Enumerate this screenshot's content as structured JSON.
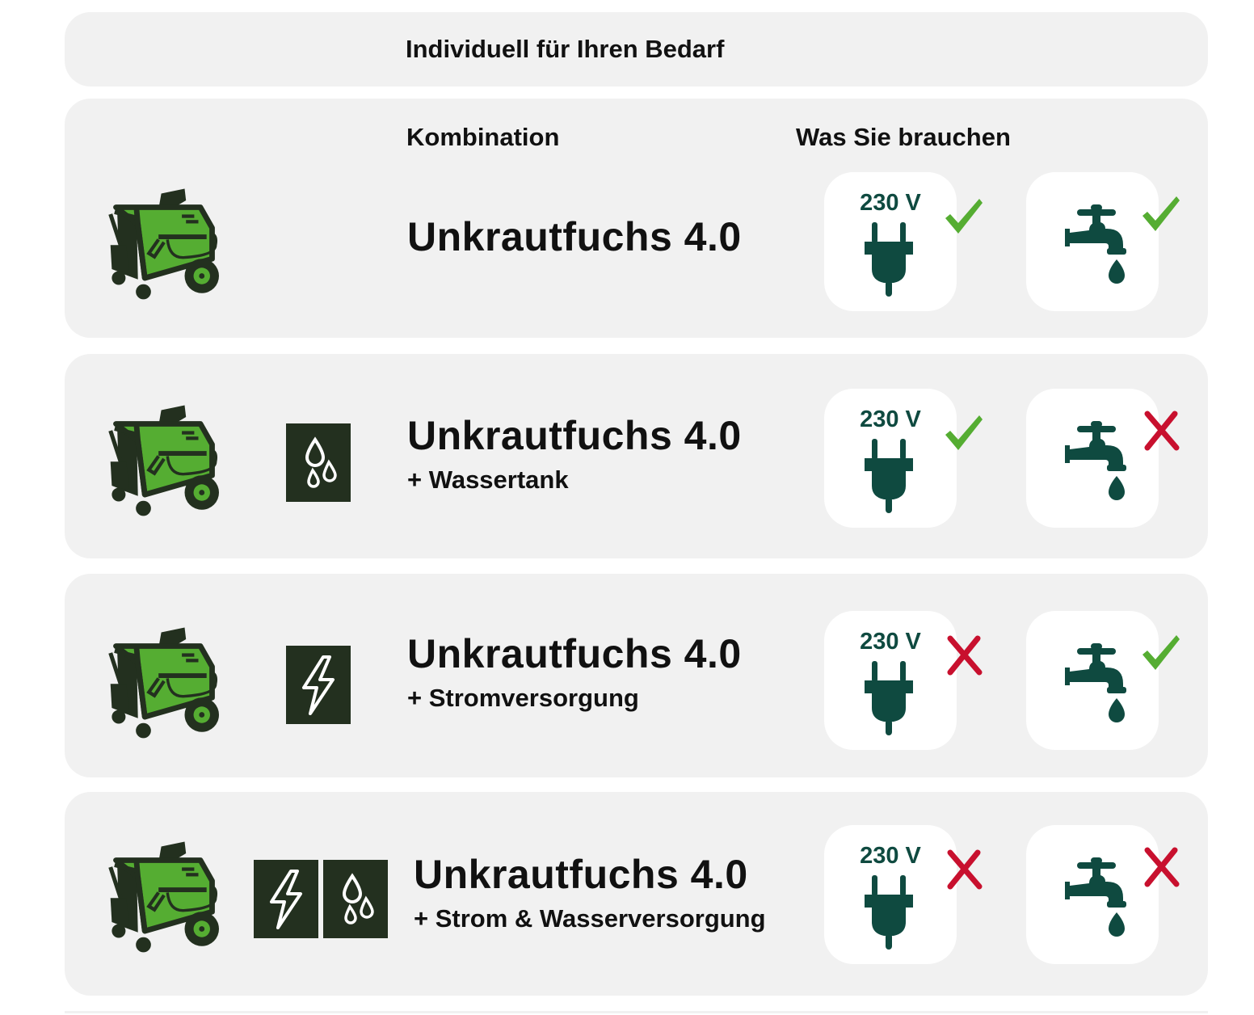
{
  "header": {
    "title": "Individuell für Ihren Bedarf"
  },
  "columns": {
    "combination": "Kombination",
    "needs": "Was Sie brauchen"
  },
  "colors": {
    "dark_green": "#0f4a40",
    "machine_green": "#55ad32",
    "check_green": "#55ad32",
    "cross_red": "#c8102e",
    "tile_dark": "#23301f"
  },
  "rows": [
    {
      "title": "Unkrautfuchs 4.0",
      "subtitle": "",
      "accessories": [],
      "power": {
        "label": "230 V",
        "required": true
      },
      "water": {
        "required": true
      }
    },
    {
      "title": "Unkrautfuchs 4.0",
      "subtitle": "+ Wassertank",
      "accessories": [
        "water-drops-icon"
      ],
      "power": {
        "label": "230 V",
        "required": true
      },
      "water": {
        "required": false
      }
    },
    {
      "title": "Unkrautfuchs 4.0",
      "subtitle": "+ Stromversorgung",
      "accessories": [
        "lightning-icon"
      ],
      "power": {
        "label": "230 V",
        "required": false
      },
      "water": {
        "required": true
      }
    },
    {
      "title": "Unkrautfuchs 4.0",
      "subtitle": "+ Strom & Wasserversorgung",
      "accessories": [
        "lightning-icon",
        "water-drops-icon"
      ],
      "power": {
        "label": "230 V",
        "required": false
      },
      "water": {
        "required": false
      }
    }
  ]
}
